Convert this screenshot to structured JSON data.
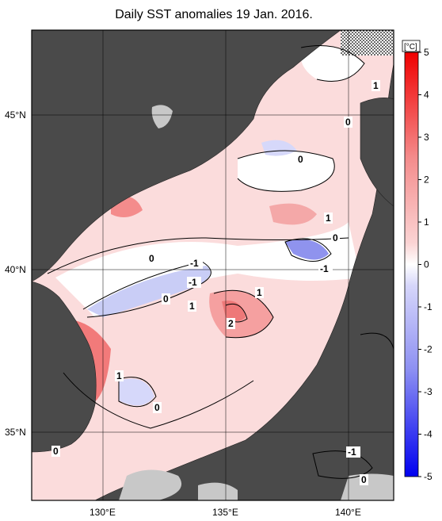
{
  "title": "Daily SST anomalies 19 Jan. 2016.",
  "colorbar": {
    "unit": "[°C]",
    "ticks": [
      "5",
      "4",
      "3",
      "2",
      "1",
      "0",
      "-1",
      "-2",
      "-3",
      "-4",
      "-5"
    ],
    "colors": {
      "high": "#f00000",
      "mid_high": "#f48c8c",
      "low_high": "#fbd4d4",
      "zero": "#ffffff",
      "low_low": "#d6d6fa",
      "mid_low": "#8c8ff2",
      "low": "#0000f0"
    }
  },
  "axes": {
    "lon_labels": [
      "130°E",
      "135°E",
      "140°E"
    ],
    "lat_labels": [
      "45°N",
      "40°N",
      "35°N"
    ]
  },
  "contour_labels": [
    "1",
    "0",
    "0",
    "1",
    "0",
    "0",
    "-1",
    "-1",
    "-1",
    "0",
    "1",
    "1",
    "2",
    "1",
    "0",
    "0",
    "-1",
    "0"
  ],
  "colors": {
    "land": "#4a4a4a",
    "ocean_base": "#fbdcdc",
    "no_data": "#c8c8c8"
  }
}
